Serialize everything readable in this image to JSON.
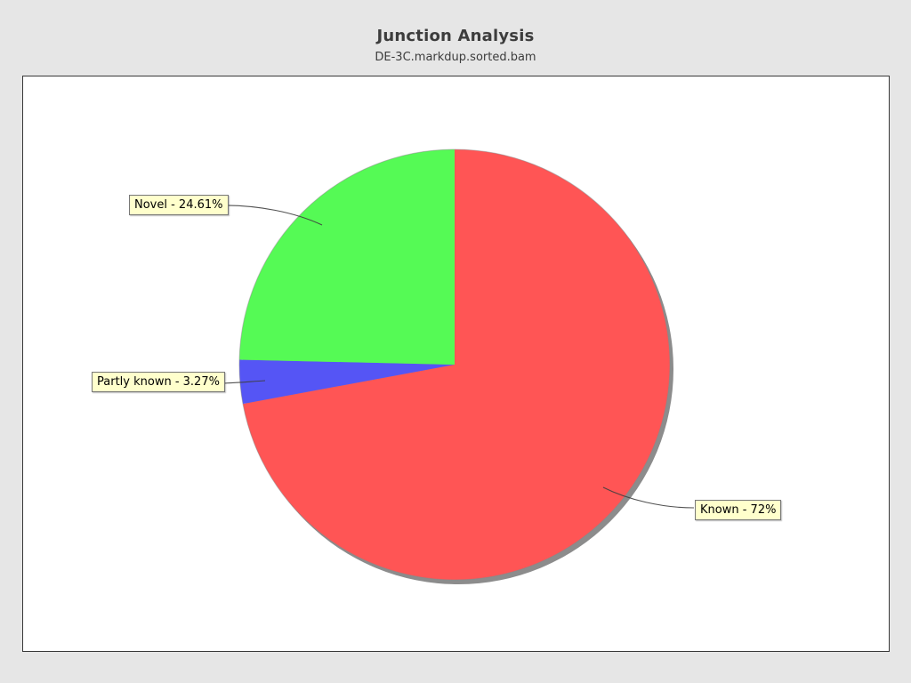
{
  "header": {
    "title": "Junction Analysis",
    "subtitle": "DE-3C.markdup.sorted.bam"
  },
  "chart_data": {
    "type": "pie",
    "title": "Junction Analysis",
    "subtitle": "DE-3C.markdup.sorted.bam",
    "start_angle": "12 o'clock",
    "direction": "clockwise",
    "legend_position": "callout-labels",
    "slices": [
      {
        "label": "Known",
        "value_pct": 72,
        "callout": "Known - 72%",
        "color": "#ff5555"
      },
      {
        "label": "Partly known",
        "value_pct": 3.27,
        "callout": "Partly known - 3.27%",
        "color": "#5555f5"
      },
      {
        "label": "Novel",
        "value_pct": 24.61,
        "callout": "Novel - 24.61%",
        "color": "#55fa55"
      }
    ],
    "shadow_color": "#8c8c8c",
    "plot_background": "#ffffff",
    "page_background": "#e6e6e6",
    "callout_fill": "#ffffcc"
  }
}
